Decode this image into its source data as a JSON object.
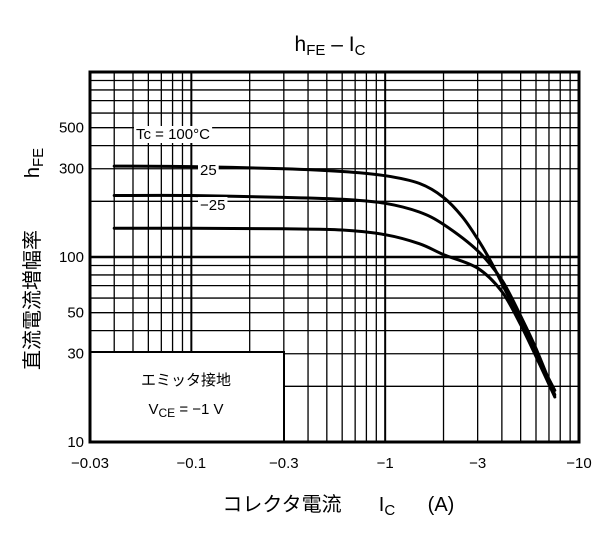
{
  "chart_data": {
    "type": "line",
    "title": "h",
    "title_sub": "FE",
    "title_mid": " – I",
    "title_sub2": "C",
    "xlabel": "コレクタ電流",
    "xlabel_symbol": "I",
    "xlabel_symbol_sub": "C",
    "xlabel_unit": "(A)",
    "ylabel": "直流電流増幅率",
    "ylabel_symbol": "h",
    "ylabel_symbol_sub": "FE",
    "x_scale": "log",
    "y_scale": "log",
    "x_values_note": "negative collector current; magnitude shown on log axis",
    "xlim": [
      -0.03,
      -10
    ],
    "ylim": [
      10,
      1000
    ],
    "x_ticks": [
      {
        "value": -0.03,
        "label": "−0.03"
      },
      {
        "value": -0.1,
        "label": "−0.1"
      },
      {
        "value": -0.3,
        "label": "−0.3"
      },
      {
        "value": -1,
        "label": "−1"
      },
      {
        "value": -3,
        "label": "−3"
      },
      {
        "value": -10,
        "label": "−10"
      }
    ],
    "y_ticks": [
      {
        "value": 10,
        "label": "10"
      },
      {
        "value": 30,
        "label": "30"
      },
      {
        "value": 50,
        "label": "50"
      },
      {
        "value": 100,
        "label": "100"
      },
      {
        "value": 300,
        "label": "300"
      },
      {
        "value": 500,
        "label": "500"
      }
    ],
    "grid": true,
    "series": [
      {
        "name": "Tc = 100°C",
        "x": [
          -0.04,
          -0.1,
          -0.3,
          -0.6,
          -1,
          -1.5,
          -2,
          -2.5,
          -3,
          -3.5,
          -4,
          -5,
          -6,
          -7.5
        ],
        "y": [
          310,
          308,
          300,
          290,
          275,
          250,
          210,
          165,
          125,
          95,
          72,
          45,
          30,
          19
        ]
      },
      {
        "name": "25",
        "x": [
          -0.04,
          -0.1,
          -0.3,
          -0.6,
          -1,
          -1.5,
          -2,
          -3,
          -4,
          -5,
          -6,
          -7.5
        ],
        "y": [
          215,
          215,
          210,
          205,
          195,
          175,
          150,
          108,
          75,
          48,
          32,
          18
        ]
      },
      {
        "name": "−25",
        "x": [
          -0.04,
          -0.1,
          -0.3,
          -0.6,
          -1,
          -1.5,
          -2,
          -3,
          -4,
          -5,
          -6,
          -7.5
        ],
        "y": [
          143,
          143,
          142,
          140,
          132,
          118,
          103,
          87,
          65,
          43,
          29,
          17.5
        ]
      }
    ],
    "annotation": {
      "line1": "エミッタ接地",
      "line2_symbol": "V",
      "line2_sub": "CE",
      "line2_value": " = −1 V"
    }
  }
}
